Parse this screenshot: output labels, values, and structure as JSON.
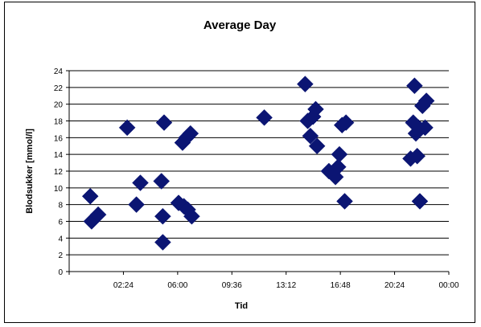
{
  "chart_data": {
    "type": "scatter",
    "title": "Average Day",
    "xlabel": "Tid",
    "ylabel": "Blodsukker [mmol/l]",
    "xlim": [
      "00:00",
      "24:00"
    ],
    "ylim": [
      0,
      24
    ],
    "x_ticks": [
      "02:24",
      "06:00",
      "09:36",
      "13:12",
      "16:48",
      "20:24",
      "00:00"
    ],
    "y_ticks": [
      "0",
      "2",
      "4",
      "6",
      "8",
      "10",
      "12",
      "14",
      "16",
      "18",
      "20",
      "22",
      "24"
    ],
    "grid": "horizontal",
    "marker": "diamond",
    "marker_color": "#0b1573",
    "points": [
      {
        "x": "01:20",
        "y": 9.0
      },
      {
        "x": "01:25",
        "y": 6.0
      },
      {
        "x": "01:50",
        "y": 6.8
      },
      {
        "x": "03:40",
        "y": 17.2
      },
      {
        "x": "04:15",
        "y": 8.0
      },
      {
        "x": "04:30",
        "y": 10.6
      },
      {
        "x": "05:50",
        "y": 10.8
      },
      {
        "x": "05:55",
        "y": 6.6
      },
      {
        "x": "05:55",
        "y": 3.5
      },
      {
        "x": "06:00",
        "y": 17.8
      },
      {
        "x": "06:55",
        "y": 8.2
      },
      {
        "x": "07:10",
        "y": 15.4
      },
      {
        "x": "07:15",
        "y": 7.8
      },
      {
        "x": "07:25",
        "y": 16.0
      },
      {
        "x": "07:30",
        "y": 7.4
      },
      {
        "x": "07:40",
        "y": 16.5
      },
      {
        "x": "07:45",
        "y": 6.6
      },
      {
        "x": "12:20",
        "y": 18.4
      },
      {
        "x": "14:55",
        "y": 22.4
      },
      {
        "x": "15:05",
        "y": 18.0
      },
      {
        "x": "15:15",
        "y": 16.2
      },
      {
        "x": "15:25",
        "y": 18.5
      },
      {
        "x": "15:35",
        "y": 19.4
      },
      {
        "x": "15:40",
        "y": 15.0
      },
      {
        "x": "16:25",
        "y": 12.0
      },
      {
        "x": "16:50",
        "y": 11.3
      },
      {
        "x": "17:00",
        "y": 12.5
      },
      {
        "x": "17:05",
        "y": 14.0
      },
      {
        "x": "17:15",
        "y": 17.5
      },
      {
        "x": "17:25",
        "y": 8.4
      },
      {
        "x": "17:30",
        "y": 17.8
      },
      {
        "x": "21:35",
        "y": 13.5
      },
      {
        "x": "21:45",
        "y": 17.8
      },
      {
        "x": "21:50",
        "y": 22.2
      },
      {
        "x": "21:55",
        "y": 16.5
      },
      {
        "x": "22:00",
        "y": 13.8
      },
      {
        "x": "22:05",
        "y": 17.2
      },
      {
        "x": "22:10",
        "y": 8.4
      },
      {
        "x": "22:20",
        "y": 19.8
      },
      {
        "x": "22:30",
        "y": 17.2
      },
      {
        "x": "22:35",
        "y": 20.4
      }
    ]
  }
}
